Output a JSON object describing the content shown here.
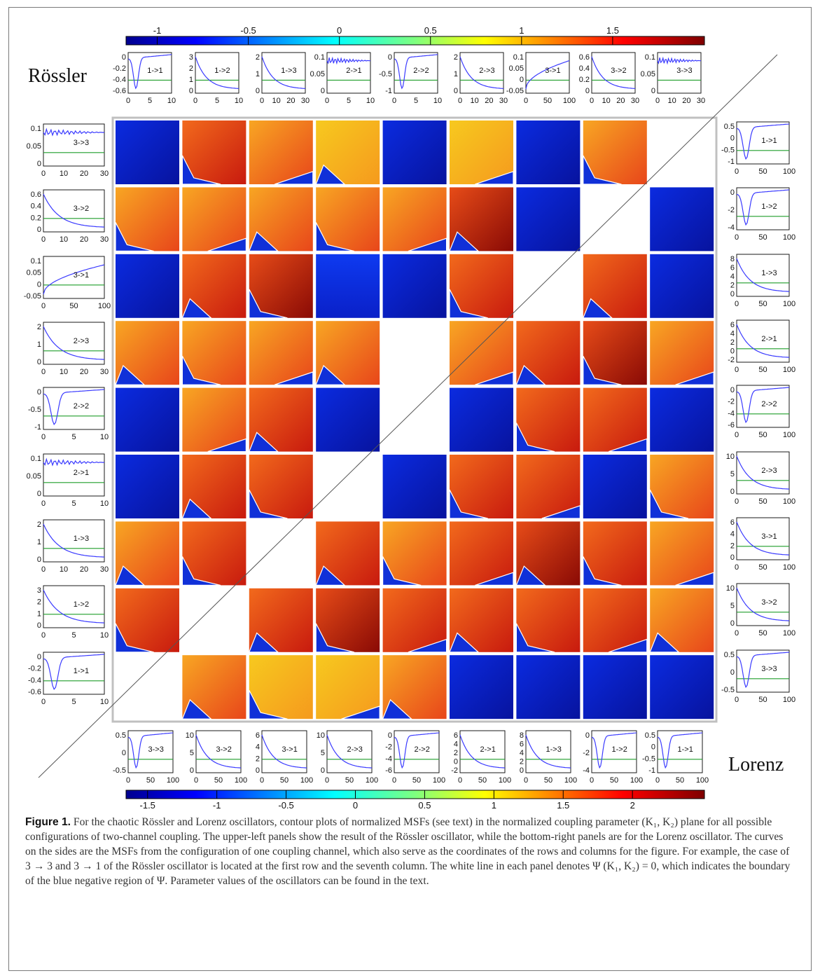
{
  "figure": {
    "rossler_label": "Rössler",
    "lorenz_label": "Lorenz",
    "colorbar_top_ticks": [
      "-1",
      "-0.5",
      "0",
      "0.5",
      "1",
      "1.5"
    ],
    "colorbar_bottom_ticks": [
      "-1.5",
      "-1",
      "-0.5",
      "0",
      "0.5",
      "1",
      "1.5",
      "2"
    ],
    "colors": {
      "blue": "#0a1fd0",
      "orange": "#f07e1c",
      "red": "#e63515",
      "yellow": "#f5e21b",
      "line_blue": "#3b3bff",
      "line_green": "#1f9e2a"
    },
    "rossler_top_panels": [
      {
        "label": "1->1",
        "yticks": [
          "0",
          "-0.2",
          "-0.4",
          "-0.6"
        ],
        "xticks": [
          "0",
          "5",
          "10"
        ]
      },
      {
        "label": "1->2",
        "yticks": [
          "3",
          "2",
          "1",
          "0"
        ],
        "xticks": [
          "0",
          "5",
          "10"
        ]
      },
      {
        "label": "1->3",
        "yticks": [
          "2",
          "1",
          "0"
        ],
        "xticks": [
          "0",
          "10",
          "20",
          "30"
        ]
      },
      {
        "label": "2->1",
        "yticks": [
          "0.1",
          "0.05",
          "0"
        ],
        "xticks": [
          "0",
          "5",
          "10"
        ]
      },
      {
        "label": "2->2",
        "yticks": [
          "0",
          "-0.5",
          "-1"
        ],
        "xticks": [
          "0",
          "5",
          "10"
        ]
      },
      {
        "label": "2->3",
        "yticks": [
          "2",
          "1",
          "0"
        ],
        "xticks": [
          "0",
          "10",
          "20",
          "30"
        ]
      },
      {
        "label": "3->1",
        "yticks": [
          "0.1",
          "0.05",
          "0",
          "-0.05"
        ],
        "xticks": [
          "0",
          "50",
          "100"
        ]
      },
      {
        "label": "3->2",
        "yticks": [
          "0.6",
          "0.4",
          "0.2",
          "0"
        ],
        "xticks": [
          "0",
          "10",
          "20",
          "30"
        ]
      },
      {
        "label": "3->3",
        "yticks": [
          "0.1",
          "0.05",
          "0"
        ],
        "xticks": [
          "0",
          "10",
          "20",
          "30"
        ]
      }
    ],
    "rossler_left_panels": [
      {
        "label": "3->3",
        "yticks": [
          "0.1",
          "0.05",
          "0"
        ],
        "xticks": [
          "0",
          "10",
          "20",
          "30"
        ]
      },
      {
        "label": "3->2",
        "yticks": [
          "0.6",
          "0.4",
          "0.2",
          "0"
        ],
        "xticks": [
          "0",
          "10",
          "20",
          "30"
        ]
      },
      {
        "label": "3->1",
        "yticks": [
          "0.1",
          "0.05",
          "0",
          "-0.05"
        ],
        "xticks": [
          "0",
          "50",
          "100"
        ]
      },
      {
        "label": "2->3",
        "yticks": [
          "2",
          "1",
          "0"
        ],
        "xticks": [
          "0",
          "10",
          "20",
          "30"
        ]
      },
      {
        "label": "2->2",
        "yticks": [
          "0",
          "-0.5",
          "-1"
        ],
        "xticks": [
          "0",
          "5",
          "10"
        ]
      },
      {
        "label": "2->1",
        "yticks": [
          "0.1",
          "0.05",
          "0"
        ],
        "xticks": [
          "0",
          "5",
          "10"
        ]
      },
      {
        "label": "1->3",
        "yticks": [
          "2",
          "1",
          "0"
        ],
        "xticks": [
          "0",
          "10",
          "20",
          "30"
        ]
      },
      {
        "label": "1->2",
        "yticks": [
          "3",
          "2",
          "1",
          "0"
        ],
        "xticks": [
          "0",
          "5",
          "10"
        ]
      },
      {
        "label": "1->1",
        "yticks": [
          "0",
          "-0.2",
          "-0.4",
          "-0.6"
        ],
        "xticks": [
          "0",
          "5",
          "10"
        ]
      }
    ],
    "lorenz_right_panels": [
      {
        "label": "1->1",
        "yticks": [
          "0.5",
          "0",
          "-0.5",
          "-1"
        ],
        "xticks": [
          "0",
          "50",
          "100"
        ]
      },
      {
        "label": "1->2",
        "yticks": [
          "0",
          "-2",
          "-4"
        ],
        "xticks": [
          "0",
          "50",
          "100"
        ]
      },
      {
        "label": "1->3",
        "yticks": [
          "8",
          "6",
          "4",
          "2",
          "0"
        ],
        "xticks": [
          "0",
          "50",
          "100"
        ]
      },
      {
        "label": "2->1",
        "yticks": [
          "6",
          "4",
          "2",
          "0",
          "-2"
        ],
        "xticks": [
          "0",
          "50",
          "100"
        ]
      },
      {
        "label": "2->2",
        "yticks": [
          "0",
          "-2",
          "-4",
          "-6"
        ],
        "xticks": [
          "0",
          "50",
          "100"
        ]
      },
      {
        "label": "2->3",
        "yticks": [
          "10",
          "5",
          "0"
        ],
        "xticks": [
          "0",
          "50",
          "100"
        ]
      },
      {
        "label": "3->1",
        "yticks": [
          "6",
          "4",
          "2",
          "0"
        ],
        "xticks": [
          "0",
          "50",
          "100"
        ]
      },
      {
        "label": "3->2",
        "yticks": [
          "10",
          "5",
          "0"
        ],
        "xticks": [
          "0",
          "50",
          "100"
        ]
      },
      {
        "label": "3->3",
        "yticks": [
          "0.5",
          "0",
          "-0.5"
        ],
        "xticks": [
          "0",
          "50",
          "100"
        ]
      }
    ],
    "lorenz_bottom_panels": [
      {
        "label": "3->3",
        "yticks": [
          "0.5",
          "0",
          "-0.5"
        ],
        "xticks": [
          "0",
          "50",
          "100"
        ]
      },
      {
        "label": "3->2",
        "yticks": [
          "10",
          "5",
          "0"
        ],
        "xticks": [
          "0",
          "50",
          "100"
        ]
      },
      {
        "label": "3->1",
        "yticks": [
          "6",
          "4",
          "2",
          "0"
        ],
        "xticks": [
          "0",
          "50",
          "100"
        ]
      },
      {
        "label": "2->3",
        "yticks": [
          "10",
          "5",
          "0"
        ],
        "xticks": [
          "0",
          "50",
          "100"
        ]
      },
      {
        "label": "2->2",
        "yticks": [
          "0",
          "-2",
          "-4",
          "-6"
        ],
        "xticks": [
          "0",
          "50",
          "100"
        ]
      },
      {
        "label": "2->1",
        "yticks": [
          "6",
          "4",
          "2",
          "0",
          "-2"
        ],
        "xticks": [
          "0",
          "50",
          "100"
        ]
      },
      {
        "label": "1->3",
        "yticks": [
          "8",
          "6",
          "4",
          "2",
          "0"
        ],
        "xticks": [
          "0",
          "50",
          "100"
        ]
      },
      {
        "label": "1->2",
        "yticks": [
          "0",
          "-2",
          "-4"
        ],
        "xticks": [
          "0",
          "50",
          "100"
        ]
      },
      {
        "label": "1->1",
        "yticks": [
          "0.5",
          "0",
          "-0.5",
          "-1"
        ],
        "xticks": [
          "0",
          "50",
          "100"
        ]
      }
    ]
  },
  "caption": {
    "label": "Figure 1.",
    "text": "For the chaotic Rössler and Lorenz oscillators, contour plots of normalized MSFs (see text) in the normalized coupling parameter (K₁, K₂) plane for all possible configurations of two-channel coupling. The upper-left panels show the result of the Rössler oscillator, while the bottom-right panels are for the Lorenz oscillator. The curves on the sides are the MSFs from the configuration of one coupling channel, which also serve as the coordinates of the rows and columns for the figure. For example, the case of 3 → 3 and 3 → 1 of the Rössler oscillator is located at the first row and the seventh column. The white line in each panel denotes Ψ (K₁, K₂) = 0, which indicates the boundary of the blue negative region of Ψ. Parameter values of the oscillators can be found in the text."
  }
}
